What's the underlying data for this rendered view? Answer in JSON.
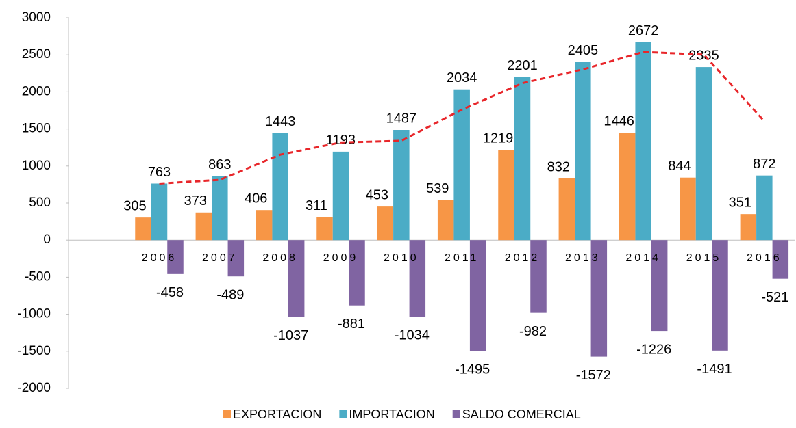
{
  "chart_data": {
    "type": "bar",
    "categories": [
      null,
      "2006",
      "2007",
      "2008",
      "2009",
      "2010",
      "2011",
      "2012",
      "2013",
      "2014",
      "2015",
      "2016"
    ],
    "series": [
      {
        "name": "EXPORTACION",
        "color": "#f79646",
        "values": [
          null,
          305,
          373,
          406,
          311,
          453,
          539,
          1219,
          832,
          1446,
          844,
          351
        ]
      },
      {
        "name": "IMPORTACION",
        "color": "#4bacc6",
        "values": [
          null,
          763,
          863,
          1443,
          1193,
          1487,
          2034,
          2201,
          2405,
          2672,
          2335,
          872
        ]
      },
      {
        "name": "SALDO COMERCIAL",
        "color": "#8064a2",
        "values": [
          null,
          -458,
          -489,
          -1037,
          -881,
          -1034,
          -1495,
          -982,
          -1572,
          -1226,
          -1491,
          -521
        ]
      }
    ],
    "trendline": {
      "type": "moving_average",
      "period": 2,
      "series": 1,
      "color": "#e8262a"
    },
    "ylim": [
      -2000,
      3000
    ],
    "yticks": [
      -2000,
      -1500,
      -1000,
      -500,
      0,
      500,
      1000,
      1500,
      2000,
      2500,
      3000
    ],
    "legend": "bottom"
  }
}
